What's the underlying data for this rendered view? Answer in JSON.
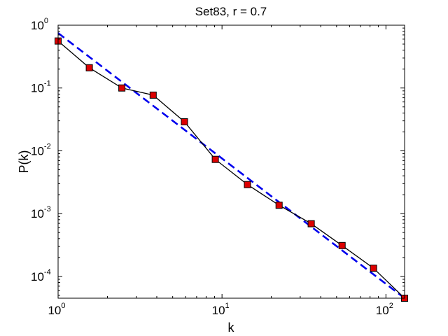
{
  "chart_data": {
    "type": "line",
    "title": "Set83, r = 0.7",
    "xlabel": "k",
    "ylabel": "P(k)",
    "x_scale": "log",
    "y_scale": "log",
    "xlim": [
      1,
      130
    ],
    "ylim": [
      4.5e-05,
      1
    ],
    "grid": false,
    "legend": "none",
    "x_ticks": [
      {
        "value": 1,
        "base": "10",
        "exp": "0"
      },
      {
        "value": 10,
        "base": "10",
        "exp": "1"
      },
      {
        "value": 100,
        "base": "10",
        "exp": "2"
      }
    ],
    "y_ticks": [
      {
        "value": 1,
        "base": "10",
        "exp": "0"
      },
      {
        "value": 0.1,
        "base": "10",
        "exp": "-1"
      },
      {
        "value": 0.01,
        "base": "10",
        "exp": "-2"
      },
      {
        "value": 0.001,
        "base": "10",
        "exp": "-3"
      },
      {
        "value": 0.0001,
        "base": "10",
        "exp": "-4"
      }
    ],
    "series": [
      {
        "type": "line-markers",
        "color": "#000000",
        "marker_color": "#dd0000",
        "x": [
          1.0,
          1.55,
          2.45,
          3.8,
          5.9,
          9.1,
          14.3,
          22.3,
          35,
          54,
          84,
          130
        ],
        "y": [
          0.56,
          0.21,
          0.1,
          0.077,
          0.029,
          0.0073,
          0.0029,
          0.00136,
          0.00069,
          0.00031,
          0.000135,
          4.5e-05
        ]
      },
      {
        "type": "dashed-fit",
        "color": "#0000ee",
        "x": [
          1.0,
          130
        ],
        "y": [
          0.75,
          4.5e-05
        ]
      }
    ]
  }
}
